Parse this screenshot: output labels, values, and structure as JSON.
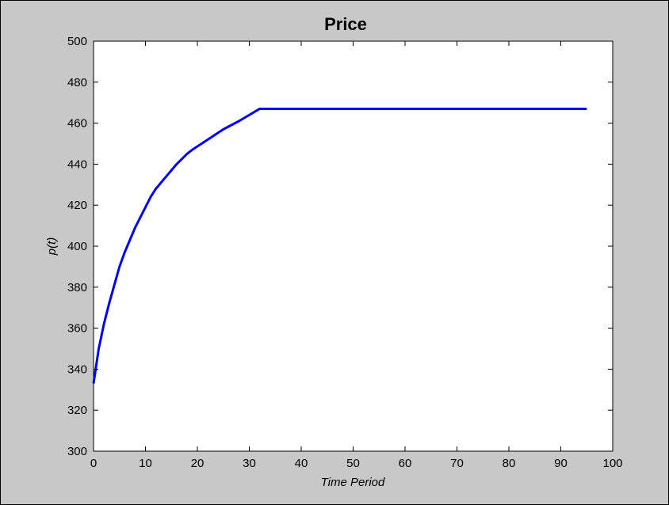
{
  "chart_data": {
    "type": "line",
    "title": "Price",
    "xlabel": "Time Period",
    "ylabel": "p(t)",
    "xlim": [
      0,
      100
    ],
    "ylim": [
      300,
      500
    ],
    "xticks": [
      0,
      10,
      20,
      30,
      40,
      50,
      60,
      70,
      80,
      90,
      100
    ],
    "yticks": [
      300,
      320,
      340,
      360,
      380,
      400,
      420,
      440,
      460,
      480,
      500
    ],
    "grid": false,
    "series": [
      {
        "color": "#0000ff",
        "x": [
          0,
          1,
          2,
          3,
          4,
          5,
          6,
          7,
          8,
          9,
          10,
          11,
          12,
          14,
          16,
          18,
          19,
          22,
          25,
          28,
          30,
          32,
          40,
          50,
          60,
          70,
          80,
          90,
          95
        ],
        "y": [
          333,
          350,
          362,
          372,
          381,
          390,
          397,
          403,
          409,
          414,
          419,
          424,
          428,
          434,
          440,
          445,
          447,
          452,
          457,
          461,
          464,
          467,
          467,
          467,
          467,
          467,
          467,
          467,
          467
        ]
      }
    ]
  },
  "colors": {
    "figure_background": "#c8c8c8",
    "axes_background": "#ffffff",
    "axes_color": "#000000",
    "line": "#0000ff"
  }
}
